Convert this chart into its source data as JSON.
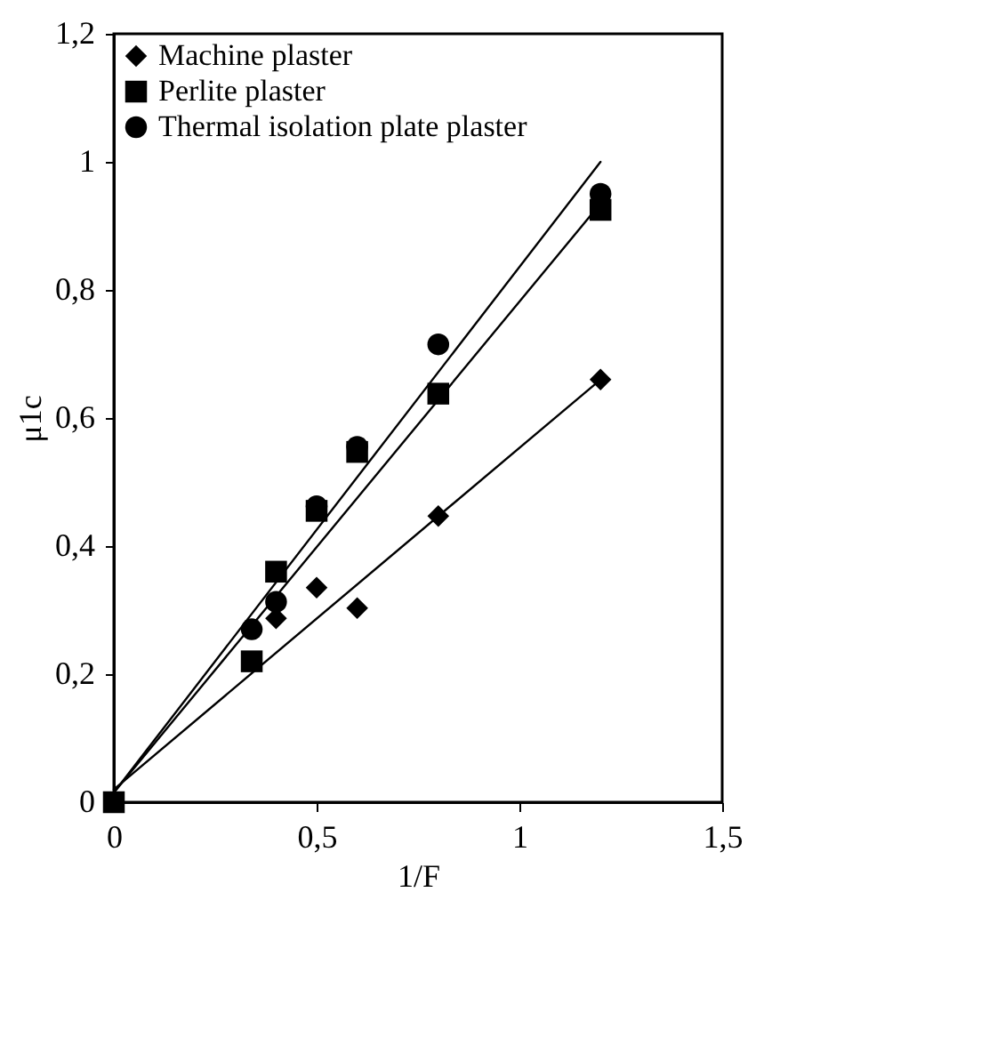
{
  "chart_data": {
    "type": "scatter",
    "xlabel": "1/F",
    "ylabel": "μ1c",
    "xlim": [
      0,
      1.5
    ],
    "xticks": [
      0,
      {
        "value": 0.5,
        "label": "0,5"
      },
      1,
      {
        "value": 1.5,
        "label": "1,5"
      }
    ],
    "ylim": [
      0,
      1.2
    ],
    "yticks": [
      0,
      {
        "value": 0.2,
        "label": "0,2"
      },
      {
        "value": 0.4,
        "label": "0,4"
      },
      {
        "value": 0.6,
        "label": "0,6"
      },
      {
        "value": 0.8,
        "label": "0,8"
      },
      1,
      {
        "value": 1.2,
        "label": "1,2"
      }
    ],
    "grid": false,
    "legend": "top left",
    "series": [
      {
        "name": "Machine plaster",
        "color": "#000000",
        "marker": "diamond",
        "x": [
          0.4,
          0.5,
          0.6,
          0.8,
          1.2
        ],
        "values": [
          0.287,
          0.335,
          0.303,
          0.447,
          0.66
        ]
      },
      {
        "name": "Perlite plaster",
        "color": "#000000",
        "marker": "square",
        "x": [
          0,
          0.34,
          0.4,
          0.5,
          0.6,
          0.8,
          1.2
        ],
        "values": [
          0,
          0.22,
          0.36,
          0.455,
          0.547,
          0.638,
          0.925
        ]
      },
      {
        "name": "Thermal isolation plate plaster",
        "color": "#000000",
        "marker": "circle",
        "x": [
          0.34,
          0.4,
          0.5,
          0.6,
          0.8,
          1.2
        ],
        "values": [
          0.27,
          0.313,
          0.462,
          0.555,
          0.715,
          0.95
        ]
      },
      {
        "type": "line",
        "color": "#000000",
        "x": [
          0,
          1.2
        ],
        "values": [
          0.02,
          0.66
        ]
      },
      {
        "type": "line",
        "color": "#000000",
        "x": [
          0,
          1.2
        ],
        "values": [
          0.015,
          0.935
        ]
      },
      {
        "type": "line",
        "color": "#000000",
        "x": [
          0,
          1.2
        ],
        "values": [
          0.015,
          1.0
        ]
      }
    ]
  }
}
